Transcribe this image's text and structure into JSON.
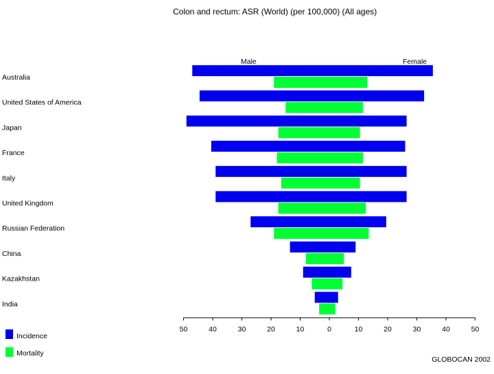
{
  "chart_data": {
    "type": "bar",
    "title": "Colon and rectum: ASR (World) (per 100,000) (All ages)",
    "left_label": "Male",
    "right_label": "Female",
    "categories": [
      "Australia",
      "United States of America",
      "Japan",
      "France",
      "Italy",
      "United Kingdom",
      "Russian Federation",
      "China",
      "Kazakhstan",
      "India"
    ],
    "series": [
      {
        "name": "Incidence",
        "color": "#0000ee",
        "male": [
          47.0,
          44.5,
          49.0,
          40.5,
          39.0,
          39.0,
          27.0,
          13.5,
          9.0,
          5.0
        ],
        "female": [
          35.5,
          32.5,
          26.5,
          26.0,
          26.5,
          26.5,
          19.5,
          9.0,
          7.5,
          3.0
        ]
      },
      {
        "name": "Mortality",
        "color": "#00ff33",
        "male": [
          19.0,
          15.0,
          17.5,
          18.0,
          16.5,
          17.5,
          19.0,
          8.0,
          6.0,
          3.5
        ],
        "female": [
          13.0,
          11.5,
          10.5,
          11.5,
          10.5,
          12.5,
          13.5,
          5.0,
          4.5,
          2.0
        ]
      }
    ],
    "xlim": [
      -50,
      50
    ],
    "tick_labels": [
      "50",
      "40",
      "30",
      "20",
      "10",
      "0",
      "10",
      "20",
      "30",
      "40",
      "50"
    ],
    "legend_position": "bottom-left",
    "grid": false
  },
  "credit": "GLOBOCAN 2002"
}
